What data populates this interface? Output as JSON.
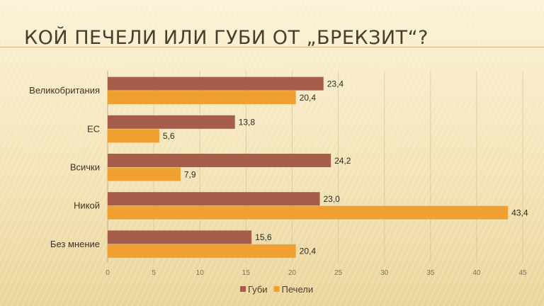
{
  "title": "КОЙ ПЕЧЕЛИ ИЛИ ГУБИ ОТ „БРЕКЗИТ“?",
  "watermark": "afis",
  "colors": {
    "Губи": "#a65e4a",
    "Печели": "#f0a030"
  },
  "chart_data": {
    "type": "bar",
    "orientation": "horizontal",
    "title": "КОЙ ПЕЧЕЛИ ИЛИ ГУБИ ОТ „БРЕКЗИТ“?",
    "categories": [
      "Великобритания",
      "ЕС",
      "Всички",
      "Никой",
      "Без мнение"
    ],
    "series": [
      {
        "name": "Губи",
        "values": [
          23.4,
          13.8,
          24.2,
          23.0,
          15.6
        ],
        "labels": [
          "23,4",
          "13,8",
          "24,2",
          "23,0",
          "15,6"
        ]
      },
      {
        "name": "Печели",
        "values": [
          20.4,
          5.6,
          7.9,
          43.4,
          20.4
        ],
        "labels": [
          "20,4",
          "5,6",
          "7,9",
          "43,4",
          "20,4"
        ]
      }
    ],
    "xlim": [
      0,
      45
    ],
    "xticks": [
      "0",
      "5",
      "10",
      "15",
      "20",
      "25",
      "30",
      "35",
      "40",
      "45"
    ],
    "grid": true,
    "legend": "bottom"
  }
}
